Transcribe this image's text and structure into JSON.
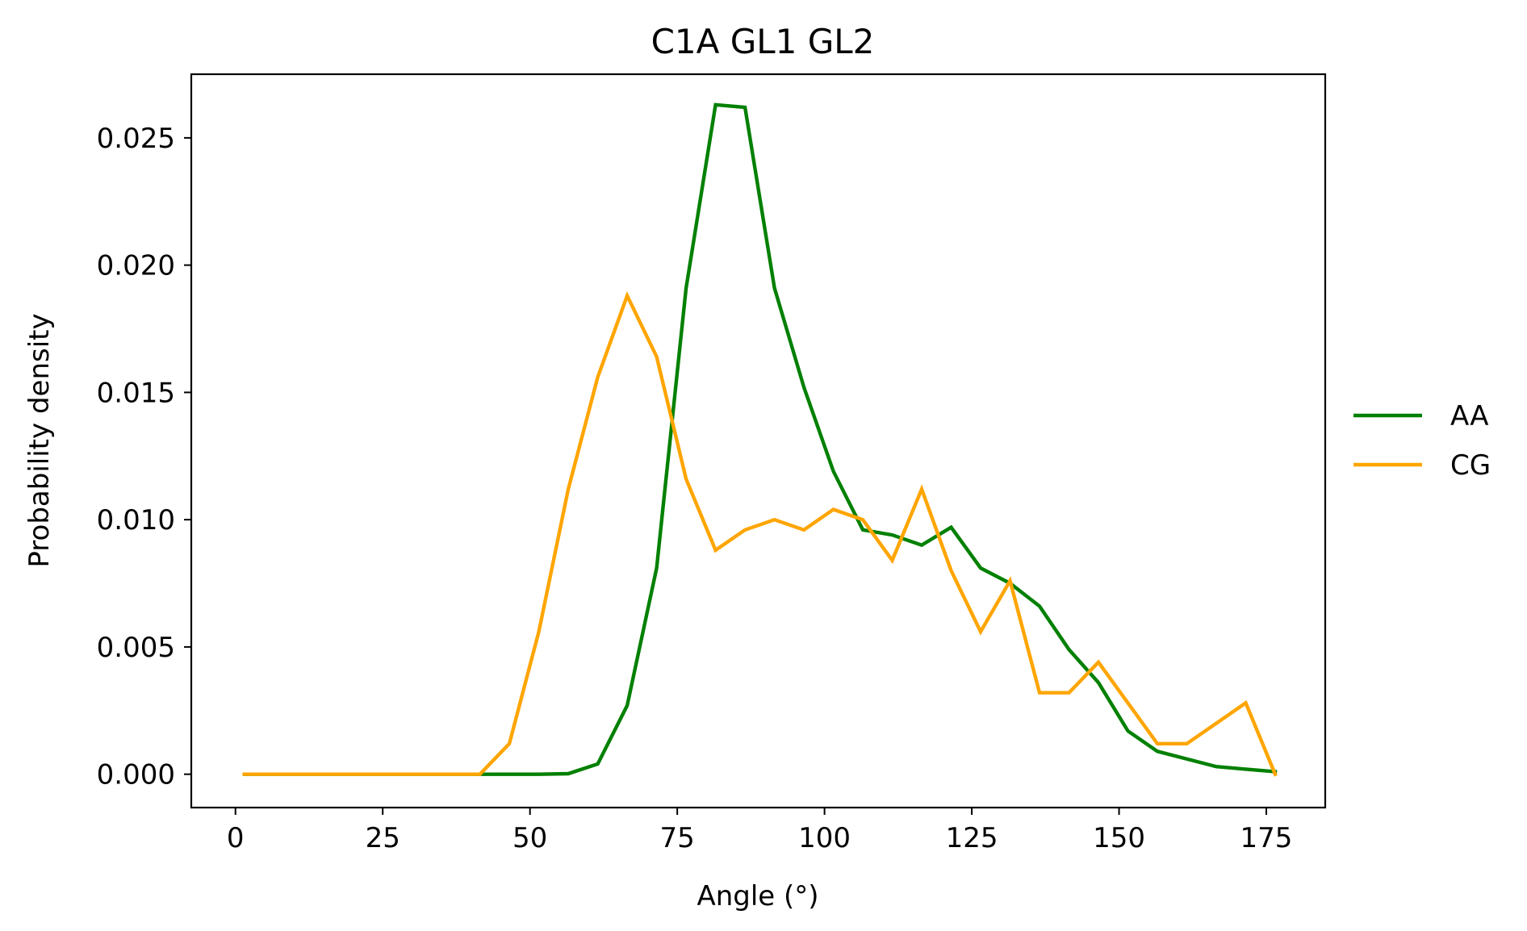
{
  "chart_data": {
    "type": "line",
    "title": "C1A GL1 GL2",
    "xlabel": "Angle (°)",
    "ylabel": "Probability density",
    "xlim": [
      -7.5,
      185
    ],
    "ylim": [
      -0.00131,
      0.0275
    ],
    "xticks": [
      0,
      25,
      50,
      75,
      100,
      125,
      150,
      175
    ],
    "xtick_labels": [
      "0",
      "25",
      "50",
      "75",
      "100",
      "125",
      "150",
      "175"
    ],
    "yticks": [
      0.0,
      0.005,
      0.01,
      0.015,
      0.02,
      0.025
    ],
    "ytick_labels": [
      "0.000",
      "0.005",
      "0.010",
      "0.015",
      "0.020",
      "0.025"
    ],
    "grid": false,
    "legend_position": "right-outside",
    "x": [
      1.5,
      6.5,
      11.5,
      16.5,
      21.5,
      26.5,
      31.5,
      36.5,
      41.5,
      46.5,
      51.5,
      56.5,
      61.5,
      66.5,
      71.5,
      76.5,
      81.5,
      86.5,
      91.5,
      96.5,
      101.5,
      106.5,
      111.5,
      116.5,
      121.5,
      126.5,
      131.5,
      136.5,
      141.5,
      146.5,
      151.5,
      156.5,
      161.5,
      166.5,
      171.5,
      176.5
    ],
    "series": [
      {
        "name": "AA",
        "color": "#008000",
        "values": [
          0,
          0,
          0,
          0,
          0,
          0,
          0,
          0,
          0,
          0,
          0,
          2e-05,
          0.0004,
          0.0027,
          0.0081,
          0.0191,
          0.0263,
          0.0262,
          0.0191,
          0.0152,
          0.0119,
          0.0096,
          0.0094,
          0.009,
          0.0097,
          0.0081,
          0.0075,
          0.0066,
          0.0049,
          0.0036,
          0.0017,
          0.0009,
          0.0006,
          0.0003,
          0.0002,
          0.0001
        ]
      },
      {
        "name": "CG",
        "color": "#ffa500",
        "values": [
          0,
          0,
          0,
          0,
          0,
          0,
          0,
          0,
          0,
          0.0012,
          0.0056,
          0.0112,
          0.0156,
          0.0188,
          0.0164,
          0.0116,
          0.0088,
          0.0096,
          0.01,
          0.0096,
          0.0104,
          0.01,
          0.0084,
          0.0112,
          0.008,
          0.0056,
          0.0076,
          0.0032,
          0.0032,
          0.0044,
          0.0028,
          0.0012,
          0.0012,
          0.002,
          0.0028,
          0
        ]
      }
    ]
  }
}
